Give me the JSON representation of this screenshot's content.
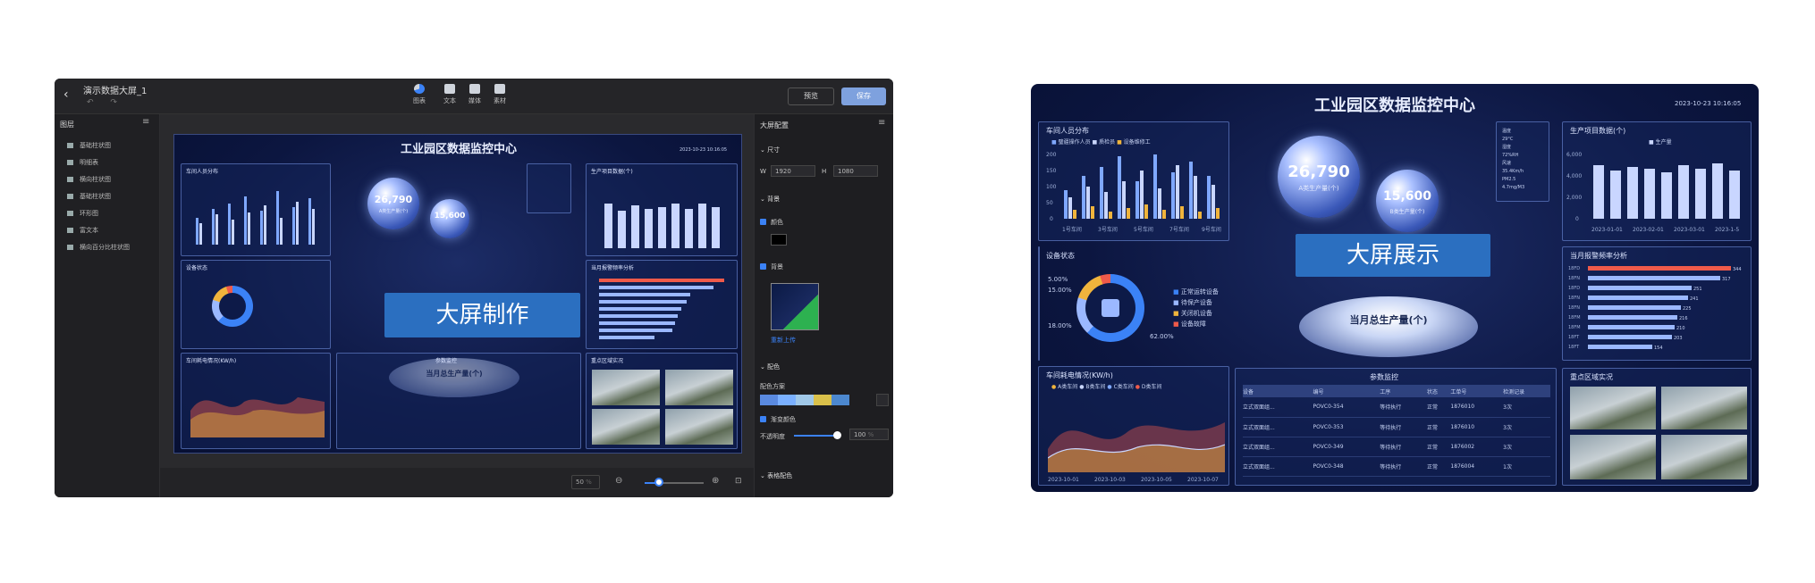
{
  "editor": {
    "title": "演示数据大屏_1",
    "undo_redo": "↶ ↷",
    "back_icon": "chevron-left-icon",
    "toolbar": [
      {
        "label": "图表",
        "icon": "pie-chart-icon"
      },
      {
        "label": "文本",
        "icon": "text-icon"
      },
      {
        "label": "媒体",
        "icon": "image-icon"
      },
      {
        "label": "素材",
        "icon": "material-icon"
      }
    ],
    "preview_label": "预览",
    "save_label": "保存",
    "layers_title": "图层",
    "layers": [
      {
        "label": "基础柱状图",
        "icon": "bar-chart-icon"
      },
      {
        "label": "明细表",
        "icon": "table-icon"
      },
      {
        "label": "横向柱状图",
        "icon": "horizontal-bar-icon"
      },
      {
        "label": "基础柱状图",
        "icon": "bar-chart-icon"
      },
      {
        "label": "环形图",
        "icon": "ring-chart-icon"
      },
      {
        "label": "富文本",
        "icon": "rich-text-icon"
      },
      {
        "label": "横向百分比柱状图",
        "icon": "percent-bar-icon"
      }
    ],
    "overlay_label": "大屏制作",
    "zoom_value": "50",
    "zoom_unit": "%",
    "right_panel": {
      "title": "大屏配置",
      "size_section": "尺寸",
      "width_label": "W",
      "width_value": "1920",
      "height_label": "H",
      "height_value": "1080",
      "background_section": "背景",
      "color_label": "颜色",
      "image_label": "背景",
      "reupload_label": "重新上传",
      "palette_section": "配色",
      "palette_label": "配色方案",
      "gradient_label": "渐变颜色",
      "opacity_label": "不透明度",
      "opacity_value": "100",
      "opacity_unit": "%",
      "table_color_section": "表格配色"
    }
  },
  "dashboard": {
    "title": "工业园区数据监控中心",
    "datetime": "2023-10-23 10:16:05",
    "overlay_label": "大屏展示",
    "panels": {
      "personnel": {
        "title": "车间人员分布",
        "legend": [
          "璧疆操作人员",
          "质检员",
          "设备维修工"
        ],
        "legend_colors": [
          "#7fa8ff",
          "#c9d6ff",
          "#f0b43c"
        ],
        "y_ticks": [
          "200",
          "150",
          "100",
          "50",
          "0"
        ],
        "categories": [
          "1号车间",
          "3号车间",
          "5号车间",
          "7号车间",
          "9号车间"
        ]
      },
      "equipment": {
        "title": "设备状态",
        "pct_labels": [
          "5.00%",
          "15.00%",
          "18.00%",
          "62.00%"
        ],
        "legend": [
          "正常运转设备",
          "待保产设备",
          "关闭机设备",
          "设备故障"
        ],
        "legend_colors": [
          "#3b82f6",
          "#9bb8ff",
          "#f0b43c",
          "#ef5a4a"
        ]
      },
      "energy": {
        "title": "车间耗电情况(KW/h)",
        "legend": [
          "A类车间",
          "B类车间",
          "C类车间",
          "D类车间"
        ],
        "legend_colors": [
          "#f0b43c",
          "#c9d6ff",
          "#7fa8ff",
          "#ef5a4a"
        ],
        "x_ticks": [
          "2023-10-01",
          "2023-10-03",
          "2023-10-05",
          "2023-10-07"
        ]
      },
      "production": {
        "title": "生产项目数据(个)",
        "legend": "生产量",
        "y_ticks": [
          "6,000",
          "4,000",
          "2,000",
          "0"
        ],
        "x_ticks": [
          "2023-01-01",
          "2023-02-01",
          "2023-03-01",
          "2023-1-5"
        ]
      },
      "device_top": {
        "title": "当月报警频率分析",
        "rows": [
          {
            "code": "18FD",
            "value": "344"
          },
          {
            "code": "18FN",
            "value": "317"
          },
          {
            "code": "18FD",
            "value": "251"
          },
          {
            "code": "18FN",
            "value": "241"
          },
          {
            "code": "18FN",
            "value": "225"
          },
          {
            "code": "18FM",
            "value": "216"
          },
          {
            "code": "18FM",
            "value": "210"
          },
          {
            "code": "18FT",
            "value": "203"
          },
          {
            "code": "18FT",
            "value": "154"
          }
        ]
      },
      "params": {
        "title": "参数监控",
        "headers": [
          "设备",
          "编号",
          "工序",
          "状态",
          "工单号",
          "检测记录"
        ],
        "rows": [
          [
            "立式双面组...",
            "POVC0-354",
            "等待执行",
            "正常",
            "1876010",
            "3次"
          ],
          [
            "立式双面组...",
            "POVC0-353",
            "等待执行",
            "正常",
            "1876010",
            "3次"
          ],
          [
            "立式双面组...",
            "POVC0-349",
            "等待执行",
            "正常",
            "1876002",
            "3次"
          ],
          [
            "立式双面组...",
            "POVC0-348",
            "等待执行",
            "正常",
            "1876004",
            "1次"
          ]
        ]
      },
      "cameras": {
        "title": "重点区域实况"
      }
    },
    "stats": {
      "total": {
        "value": "26,790",
        "label": "A类生产量(个)"
      },
      "secondary": {
        "value": "15,600",
        "label": "B类生产量(个)"
      },
      "pedestal_label": "当月总生产量(个)"
    },
    "weather": [
      "温度",
      "29°C",
      "湿度",
      "72%RH",
      "风速",
      "35.4Km/h",
      "PM2.5",
      "4.7mg/M3"
    ]
  },
  "colors": {
    "accent": "#3b82f6",
    "overlay": "#2b6fc0",
    "dashboard_bg": "#0c1640",
    "editor_bg": "#1c1c1e"
  }
}
